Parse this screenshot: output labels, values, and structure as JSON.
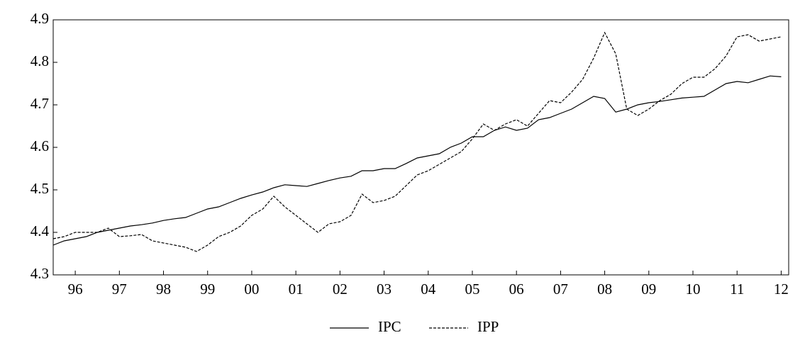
{
  "chart_data": {
    "type": "line",
    "x": [
      1996,
      1996.25,
      1996.5,
      1996.75,
      1997,
      1997.25,
      1997.5,
      1997.75,
      1998,
      1998.25,
      1998.5,
      1998.75,
      1999,
      1999.25,
      1999.5,
      1999.75,
      2000,
      2000.25,
      2000.5,
      2000.75,
      2001,
      2001.25,
      2001.5,
      2001.75,
      2002,
      2002.25,
      2002.5,
      2002.75,
      2003,
      2003.25,
      2003.5,
      2003.75,
      2004,
      2004.25,
      2004.5,
      2004.75,
      2005,
      2005.25,
      2005.5,
      2005.75,
      2006,
      2006.25,
      2006.5,
      2006.75,
      2007,
      2007.25,
      2007.5,
      2007.75,
      2008,
      2008.25,
      2008.5,
      2008.75,
      2009,
      2009.25,
      2009.5,
      2009.75,
      2010,
      2010.25,
      2010.5,
      2010.75,
      2011,
      2011.25,
      2011.5,
      2011.75,
      2012,
      2012.25,
      2012.5
    ],
    "series": [
      {
        "name": "IPC",
        "color": "#000000",
        "line_style": "solid",
        "values": [
          4.37,
          4.38,
          4.385,
          4.39,
          4.4,
          4.405,
          4.41,
          4.415,
          4.418,
          4.422,
          4.428,
          4.432,
          4.435,
          4.445,
          4.455,
          4.46,
          4.47,
          4.48,
          4.488,
          4.495,
          4.505,
          4.512,
          4.51,
          4.508,
          4.515,
          4.522,
          4.528,
          4.532,
          4.545,
          4.545,
          4.55,
          4.55,
          4.562,
          4.575,
          4.58,
          4.585,
          4.6,
          4.61,
          4.625,
          4.625,
          4.64,
          4.648,
          4.64,
          4.645,
          4.665,
          4.67,
          4.68,
          4.69,
          4.705,
          4.72,
          4.715,
          4.683,
          4.69,
          4.7,
          4.705,
          4.708,
          4.712,
          4.716,
          4.718,
          4.72,
          4.735,
          4.75,
          4.755,
          4.752,
          4.76,
          4.768,
          4.766
        ]
      },
      {
        "name": "IPP",
        "color": "#000000",
        "line_style": "dashed",
        "values": [
          4.385,
          4.39,
          4.4,
          4.4,
          4.4,
          4.41,
          4.39,
          4.392,
          4.395,
          4.38,
          4.375,
          4.37,
          4.365,
          4.355,
          4.37,
          4.39,
          4.4,
          4.415,
          4.44,
          4.455,
          4.485,
          4.46,
          4.44,
          4.42,
          4.4,
          4.42,
          4.425,
          4.44,
          4.49,
          4.47,
          4.475,
          4.485,
          4.51,
          4.535,
          4.545,
          4.56,
          4.575,
          4.59,
          4.62,
          4.655,
          4.64,
          4.655,
          4.665,
          4.65,
          4.68,
          4.71,
          4.705,
          4.73,
          4.76,
          4.81,
          4.87,
          4.82,
          4.69,
          4.675,
          4.69,
          4.71,
          4.725,
          4.75,
          4.765,
          4.765,
          4.785,
          4.815,
          4.86,
          4.865,
          4.85,
          4.855,
          4.86
        ]
      }
    ],
    "xlim": [
      1996,
      2012.67
    ],
    "xticks": [
      {
        "value": 1996.5,
        "label": "96"
      },
      {
        "value": 1997.5,
        "label": "97"
      },
      {
        "value": 1998.5,
        "label": "98"
      },
      {
        "value": 1999.5,
        "label": "99"
      },
      {
        "value": 2000.5,
        "label": "00"
      },
      {
        "value": 2001.5,
        "label": "01"
      },
      {
        "value": 2002.5,
        "label": "02"
      },
      {
        "value": 2003.5,
        "label": "03"
      },
      {
        "value": 2004.5,
        "label": "04"
      },
      {
        "value": 2005.5,
        "label": "05"
      },
      {
        "value": 2006.5,
        "label": "06"
      },
      {
        "value": 2007.5,
        "label": "07"
      },
      {
        "value": 2008.5,
        "label": "08"
      },
      {
        "value": 2009.5,
        "label": "09"
      },
      {
        "value": 2010.5,
        "label": "10"
      },
      {
        "value": 2011.5,
        "label": "11"
      },
      {
        "value": 2012.5,
        "label": "12"
      }
    ],
    "ylim": [
      4.3,
      4.9
    ],
    "yticks": [
      4.3,
      4.4,
      4.5,
      4.6,
      4.7,
      4.8,
      4.9
    ]
  }
}
